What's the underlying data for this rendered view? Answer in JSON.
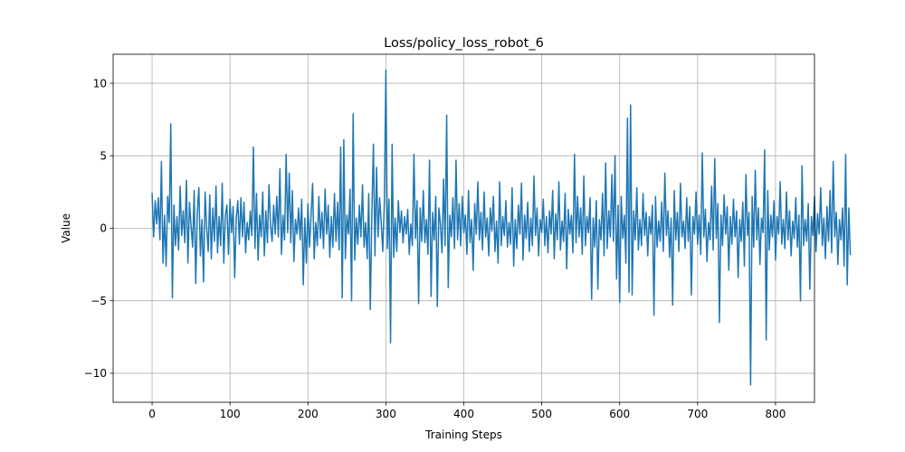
{
  "chart_data": {
    "type": "line",
    "title": "Loss/policy_loss_robot_6",
    "xlabel": "Training Steps",
    "ylabel": "Value",
    "xlim": [
      -50,
      850
    ],
    "ylim": [
      -12,
      12
    ],
    "xticks": [
      0,
      100,
      200,
      300,
      400,
      500,
      600,
      700,
      800
    ],
    "yticks": [
      -10,
      -5,
      0,
      5,
      10
    ],
    "ytick_labels": [
      "−10",
      "−5",
      "0",
      "5",
      "10"
    ],
    "grid": true,
    "legend": "none",
    "color": "#1f77b4",
    "x_start": 0,
    "x_step": 2,
    "series": [
      {
        "values": [
          2.4,
          -0.6,
          1.9,
          0.3,
          2.1,
          -0.8,
          4.6,
          -2.4,
          0.9,
          -2.6,
          2.2,
          0.4,
          7.2,
          -4.8,
          1.6,
          -1.2,
          0.8,
          -1.5,
          2.9,
          -0.5,
          1.2,
          -1.0,
          3.3,
          -2.4,
          1.8,
          0.2,
          -1.3,
          2.6,
          -3.8,
          1.1,
          2.8,
          -1.9,
          0.6,
          -3.7,
          2.5,
          0.1,
          -1.6,
          2.3,
          -2.1,
          1.4,
          -0.9,
          2.9,
          -1.7,
          0.8,
          -1.2,
          3.1,
          -2.4,
          0.9,
          1.6,
          -1.8,
          2.0,
          -0.3,
          1.5,
          -3.4,
          0.7,
          1.9,
          -1.1,
          2.1,
          -0.6,
          1.8,
          -1.7,
          0.4,
          -0.8,
          1.2,
          -0.5,
          5.6,
          -1.4,
          2.4,
          -2.2,
          0.9,
          -0.6,
          2.5,
          -1.9,
          1.2,
          -1.0,
          3.0,
          0.2,
          -0.9,
          1.6,
          -0.4,
          2.2,
          -0.6,
          4.1,
          -1.8,
          0.9,
          -0.8,
          5.1,
          -0.3,
          3.8,
          -1.0,
          2.6,
          -2.3,
          0.6,
          -0.4,
          1.4,
          -0.8,
          2.0,
          -3.9,
          0.7,
          -2.4,
          1.7,
          -1.3,
          0.9,
          3.1,
          -2.1,
          0.4,
          -1.2,
          2.2,
          -0.7,
          1.1,
          -1.4,
          2.7,
          -0.4,
          1.6,
          -2.0,
          0.8,
          -1.3,
          2.4,
          -0.9,
          1.8,
          -1.5,
          5.6,
          -4.8,
          6.1,
          -2.1,
          0.9,
          -0.4,
          2.7,
          -5.0,
          7.9,
          -2.2,
          0.7,
          -1.1,
          1.6,
          -0.6,
          3.0,
          -1.3,
          0.4,
          -2.1,
          2.4,
          -5.6,
          1.0,
          5.8,
          -1.9,
          4.2,
          -0.6,
          2.1,
          0.4,
          -1.6,
          1.7,
          10.9,
          -1.4,
          2.0,
          -7.9,
          5.8,
          -2.0,
          0.7,
          -1.6,
          1.9,
          -0.3,
          1.2,
          -1.0,
          0.8,
          -0.4,
          1.3,
          -1.8,
          0.3,
          -1.2,
          5.1,
          -0.7,
          1.9,
          -5.2,
          1.4,
          -0.9,
          2.6,
          -1.0,
          0.6,
          -1.8,
          4.7,
          -4.7,
          1.1,
          -0.8,
          2.2,
          -5.4,
          1.4,
          0.3,
          -1.7,
          3.4,
          -1.2,
          7.8,
          -4.1,
          0.9,
          -0.6,
          2.1,
          -1.4,
          4.7,
          -0.8,
          1.7,
          -1.2,
          2.2,
          -0.3,
          0.9,
          -1.8,
          2.6,
          -1.0,
          0.6,
          -2.9,
          1.7,
          -0.4,
          3.2,
          -0.8,
          1.1,
          -1.5,
          2.5,
          -0.6,
          0.7,
          -1.9,
          1.4,
          -0.2,
          2.2,
          -1.6,
          0.5,
          -2.4,
          3.2,
          -1.2,
          0.8,
          -0.5,
          1.9,
          -1.3,
          0.4,
          -1.1,
          2.8,
          -2.6,
          0.6,
          -1.4,
          1.6,
          -0.4,
          3.1,
          -2.2,
          0.9,
          -0.7,
          1.8,
          -1.6,
          0.7,
          -1.2,
          3.6,
          -0.5,
          1.4,
          -1.9,
          0.6,
          -0.3,
          2.0,
          -1.2,
          0.8,
          -1.7,
          1.2,
          -0.4,
          2.6,
          -2.1,
          1.0,
          -0.8,
          3.2,
          -1.5,
          0.5,
          -0.9,
          2.4,
          -2.8,
          1.3,
          -0.4,
          0.9,
          -1.7,
          5.1,
          -1.0,
          2.2,
          -0.6,
          1.4,
          -1.8,
          3.6,
          -1.2,
          0.8,
          -0.3,
          2.1,
          -4.9,
          0.7,
          -1.3,
          1.9,
          -4.2,
          0.6,
          -0.8,
          2.4,
          -1.9,
          4.5,
          -1.4,
          1.2,
          -0.6,
          3.7,
          -0.9,
          5.0,
          -3.5,
          1.6,
          -5.1,
          2.2,
          -0.7,
          0.9,
          -2.4,
          7.6,
          -4.4,
          8.5,
          -4.6,
          1.2,
          -0.8,
          2.8,
          -1.5,
          0.6,
          -1.2,
          2.4,
          -0.5,
          1.1,
          -1.9,
          0.8,
          -0.4,
          1.6,
          -6.0,
          2.2,
          -1.3,
          0.5,
          -0.9,
          1.8,
          -1.6,
          3.8,
          -0.5,
          1.2,
          -2.0,
          0.7,
          -5.3,
          2.6,
          -0.8,
          1.1,
          -1.6,
          3.1,
          -0.6,
          0.5,
          -1.4,
          2.1,
          -0.9,
          1.5,
          -4.6,
          0.8,
          -0.4,
          2.5,
          -1.1,
          0.9,
          -1.8,
          5.2,
          -0.6,
          1.3,
          -2.3,
          0.4,
          -0.8,
          2.9,
          -1.5,
          4.8,
          -0.7,
          1.7,
          -6.5,
          0.9,
          -1.2,
          2.3,
          -0.4,
          1.5,
          -2.9,
          0.8,
          -1.1,
          2.0,
          -0.6,
          1.2,
          -3.4,
          0.6,
          -0.9,
          1.8,
          -2.6,
          3.7,
          -0.5,
          1.1,
          -10.8,
          2.2,
          -1.3,
          4.0,
          -0.8,
          1.4,
          -2.5,
          0.7,
          -0.3,
          5.4,
          -7.7,
          2.6,
          -1.5,
          0.9,
          -0.6,
          1.9,
          -2.2,
          0.8,
          -0.4,
          3.2,
          -1.1,
          0.6,
          -1.4,
          2.5,
          -0.8,
          1.2,
          -1.9,
          0.5,
          -0.7,
          2.1,
          -1.3,
          0.9,
          -5.0,
          4.3,
          -1.2,
          0.6,
          -0.9,
          1.7,
          -4.2,
          0.8,
          -0.5,
          2.2,
          -1.6,
          1.0,
          -0.4,
          2.8,
          -1.2,
          0.7,
          -2.1,
          1.5,
          -0.9,
          2.6,
          -1.7,
          4.6,
          -0.6,
          1.1,
          -2.5,
          0.6,
          -0.8,
          1.4,
          -2.6,
          5.1,
          -3.9,
          1.4,
          -1.8
        ]
      }
    ]
  }
}
